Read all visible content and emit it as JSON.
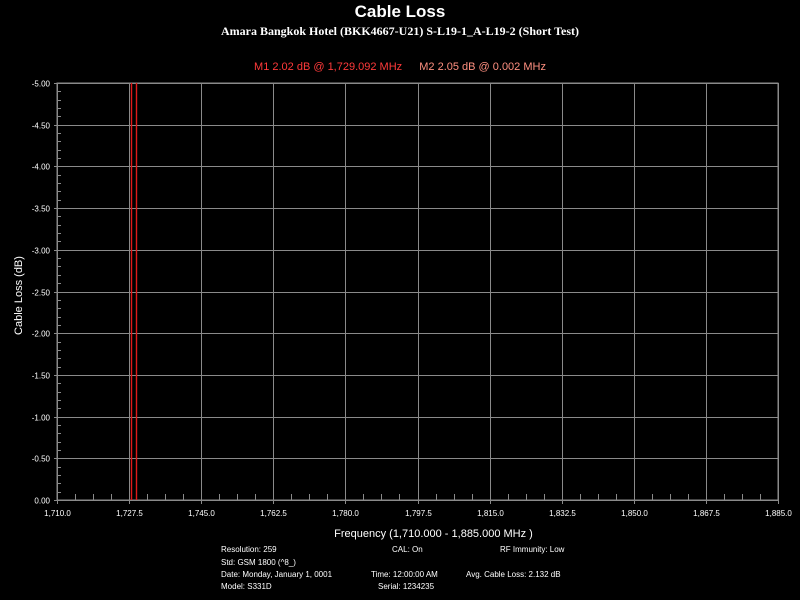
{
  "colors": {
    "background": "#000000",
    "grid": "#8a8a8a",
    "axis_text": "#ffffff",
    "marker_m1": "#ff3a3a",
    "marker_m2": "#ff9080",
    "trace": "#e01a1a"
  },
  "chart_data": {
    "type": "line",
    "title": "Cable Loss",
    "subtitle": "Amara Bangkok Hotel (BKK4667-U21) S-L19-1_A-L19-2 (Short Test)",
    "xlabel": "Frequency (1,710.000 - 1,885.000 MHz )",
    "ylabel": "Cable Loss (dB)",
    "xlim": [
      1710.0,
      1885.0
    ],
    "ylim": [
      -5.0,
      0.0
    ],
    "y_inverted": true,
    "grid": true,
    "x_ticks": [
      "1,710.0",
      "1,727.5",
      "1,745.0",
      "1,762.5",
      "1,780.0",
      "1,797.5",
      "1,815.0",
      "1,832.5",
      "1,850.0",
      "1,867.5",
      "1,885.0"
    ],
    "x_tick_values": [
      1710.0,
      1727.5,
      1745.0,
      1762.5,
      1780.0,
      1797.5,
      1815.0,
      1832.5,
      1850.0,
      1867.5,
      1885.0
    ],
    "y_ticks": [
      "-5.00",
      "-4.50",
      "-4.00",
      "-3.50",
      "-3.00",
      "-2.50",
      "-2.00",
      "-1.50",
      "-1.00",
      "-0.50",
      "0.00"
    ],
    "y_tick_values": [
      -5.0,
      -4.5,
      -4.0,
      -3.5,
      -3.0,
      -2.5,
      -2.0,
      -1.5,
      -1.0,
      -0.5,
      0.0
    ],
    "markers": [
      {
        "label": "M1  2.02 dB @ 1,729.092 MHz",
        "x": 1729.092
      },
      {
        "label": "M2  2.05 dB @ 0.002 MHz"
      }
    ],
    "trace_x": [
      1728.0,
      1729.092
    ]
  },
  "info": {
    "resolution": "Resolution: 259",
    "cal": "CAL: On",
    "rf_immunity": "RF Immunity: Low",
    "std": "Std: GSM 1800 (^8_)",
    "date": "Date: Monday, January 1, 0001",
    "time": "Time: 12:00:00 AM",
    "avg_cable_loss": "Avg. Cable Loss: 2.132 dB",
    "model": "Model: S331D",
    "serial": "Serial: 1234235"
  }
}
